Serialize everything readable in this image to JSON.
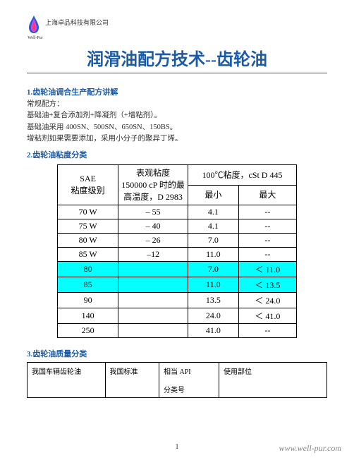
{
  "header": {
    "logo_label": "Well-Pur",
    "company": "上海卓品科技有限公司"
  },
  "title": "润滑油配方技术--齿轮油",
  "section1": {
    "heading": "1.齿轮油调合生产配方讲解",
    "line1": "常规配方：",
    "line2": "基础油+复合添加剂+降凝剂（+增粘剂）。",
    "line3": "基础油采用 400SN、500SN、650SN、150BS。",
    "line4": "增粘剂如果需要添加，采用小分子的聚异丁烯。"
  },
  "section2": {
    "heading": "2.齿轮油粘度分类",
    "table": {
      "col1_top": "SAE",
      "col1_bottom": "粘度级别",
      "col2_line1": "表观粘度",
      "col2_line2": "150000 cP 时的最高温度，D 2983",
      "col34_top": "100℃粘度，cSt D 445",
      "col3_sub": "最小",
      "col4_sub": "最大",
      "rows": [
        {
          "c1": "70 W",
          "c2": "– 55",
          "c3": "4.1",
          "c4": "--",
          "hl": false
        },
        {
          "c1": "75 W",
          "c2": "– 40",
          "c3": "4.1",
          "c4": "--",
          "hl": false
        },
        {
          "c1": "80 W",
          "c2": "– 26",
          "c3": "7.0",
          "c4": "--",
          "hl": false
        },
        {
          "c1": "85 W",
          "c2": "–12",
          "c3": "11.0",
          "c4": "--",
          "hl": false
        },
        {
          "c1": "80",
          "c2": "",
          "c3": "7.0",
          "c4": "＜ 11.0",
          "hl": true
        },
        {
          "c1": "85",
          "c2": "",
          "c3": "11.0",
          "c4": "＜ 13.5",
          "hl": true
        },
        {
          "c1": "90",
          "c2": "",
          "c3": "13.5",
          "c4": "＜ 24.0",
          "hl": false
        },
        {
          "c1": "140",
          "c2": "",
          "c3": "24.0",
          "c4": "＜ 41.0",
          "hl": false
        },
        {
          "c1": "250",
          "c2": "",
          "c3": "41.0",
          "c4": "--",
          "hl": false
        }
      ]
    }
  },
  "section3": {
    "heading": "3.齿轮油质量分类",
    "table": {
      "h1": "我国车辆齿轮油",
      "h2": "我国标准",
      "h3_line1": "相当 API",
      "h3_line2": "分类号",
      "h4": "使用部位"
    }
  },
  "footer": {
    "page": "1",
    "url": "www.well-pur.com"
  }
}
